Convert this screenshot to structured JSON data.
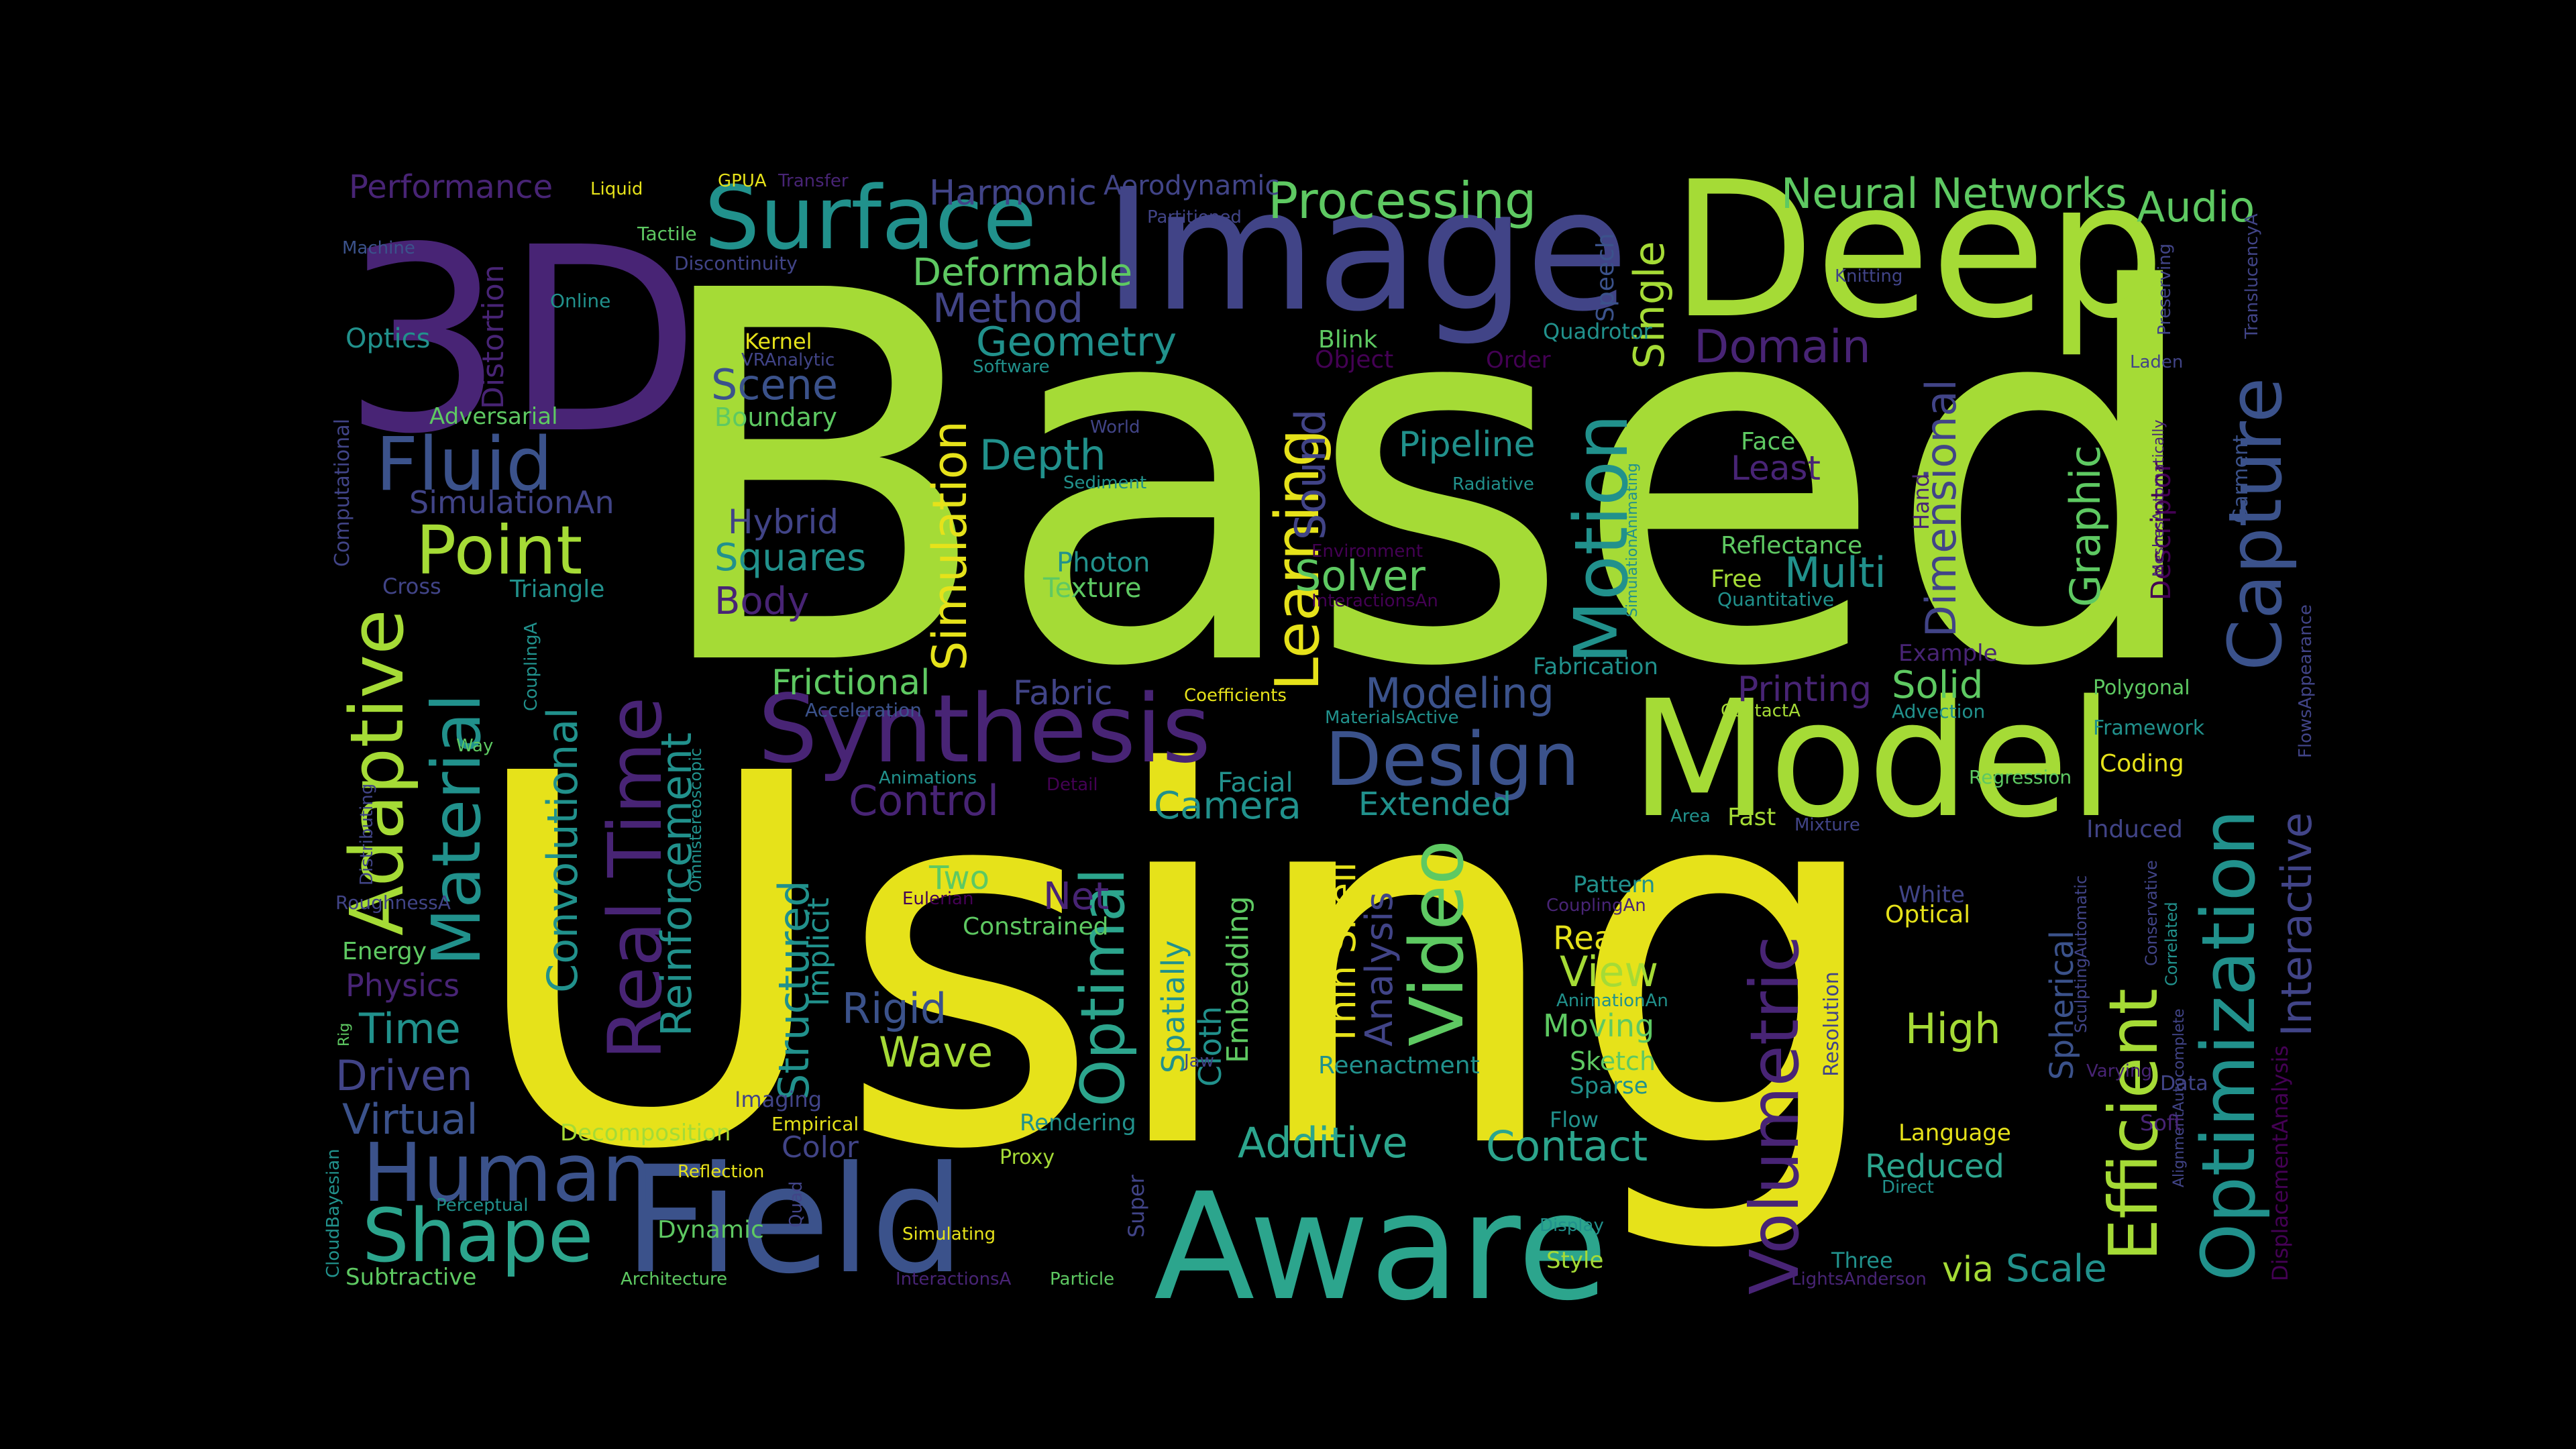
{
  "wordcloud": {
    "palette": {
      "yellow": "#e6e21a",
      "lime": "#a5db36",
      "green": "#5ec962",
      "teal": "#21918c",
      "cyan": "#2ca58d",
      "blue": "#3b528b",
      "indigo": "#414487",
      "purple": "#482475",
      "darkpurple": "#440154"
    },
    "words": [
      {
        "text": "Based",
        "color": "lime"
      },
      {
        "text": "Using",
        "color": "yellow"
      },
      {
        "text": "3D",
        "color": "purple"
      },
      {
        "text": "Image",
        "color": "indigo"
      },
      {
        "text": "Deep",
        "color": "lime"
      },
      {
        "text": "Model",
        "color": "lime"
      },
      {
        "text": "Aware",
        "color": "cyan"
      },
      {
        "text": "Field",
        "color": "blue"
      },
      {
        "text": "Surface",
        "color": "teal"
      },
      {
        "text": "Synthesis",
        "color": "purple"
      },
      {
        "text": "Capture",
        "color": "blue"
      },
      {
        "text": "Optimization",
        "color": "teal"
      },
      {
        "text": "Motion",
        "color": "teal"
      },
      {
        "text": "Design",
        "color": "blue"
      },
      {
        "text": "Adaptive",
        "color": "lime"
      },
      {
        "text": "Real Time",
        "color": "purple"
      },
      {
        "text": "Material",
        "color": "teal"
      },
      {
        "text": "Human",
        "color": "blue"
      },
      {
        "text": "Shape",
        "color": "cyan"
      },
      {
        "text": "Volumetric",
        "color": "purple"
      },
      {
        "text": "Efficient",
        "color": "lime"
      },
      {
        "text": "Video",
        "color": "green"
      },
      {
        "text": "Learning",
        "color": "yellow"
      },
      {
        "text": "Optimal",
        "color": "cyan"
      },
      {
        "text": "Point",
        "color": "lime"
      },
      {
        "text": "Fluid",
        "color": "blue"
      },
      {
        "text": "Processing",
        "color": "green"
      },
      {
        "text": "Neural Networks",
        "color": "green"
      },
      {
        "text": "Audio",
        "color": "green"
      },
      {
        "text": "Harmonic",
        "color": "indigo"
      },
      {
        "text": "Aerodynamic",
        "color": "indigo"
      },
      {
        "text": "Deformable",
        "color": "green"
      },
      {
        "text": "Method",
        "color": "indigo"
      },
      {
        "text": "Geometry",
        "color": "teal"
      },
      {
        "text": "Scene",
        "color": "blue"
      },
      {
        "text": "Boundary",
        "color": "green"
      },
      {
        "text": "Simulation",
        "color": "yellow"
      },
      {
        "text": "Depth",
        "color": "teal"
      },
      {
        "text": "Hybrid",
        "color": "indigo"
      },
      {
        "text": "Squares",
        "color": "teal"
      },
      {
        "text": "Body",
        "color": "purple"
      },
      {
        "text": "Photon",
        "color": "teal"
      },
      {
        "text": "Texture",
        "color": "green"
      },
      {
        "text": "Solver",
        "color": "green"
      },
      {
        "text": "Multi",
        "color": "teal"
      },
      {
        "text": "Pipeline",
        "color": "teal"
      },
      {
        "text": "Face",
        "color": "green"
      },
      {
        "text": "Least",
        "color": "purple"
      },
      {
        "text": "Reflectance",
        "color": "green"
      },
      {
        "text": "Free",
        "color": "lime"
      },
      {
        "text": "Quantitative",
        "color": "teal"
      },
      {
        "text": "Dimensional",
        "color": "indigo"
      },
      {
        "text": "Graphic",
        "color": "green"
      },
      {
        "text": "Descriptor",
        "color": "darkpurple"
      },
      {
        "text": "Domain",
        "color": "purple"
      },
      {
        "text": "Single",
        "color": "lime"
      },
      {
        "text": "Speech",
        "color": "blue"
      },
      {
        "text": "Quadrotor",
        "color": "teal"
      },
      {
        "text": "Blink",
        "color": "green"
      },
      {
        "text": "Object",
        "color": "darkpurple"
      },
      {
        "text": "Order",
        "color": "darkpurple"
      },
      {
        "text": "Knitting",
        "color": "indigo"
      },
      {
        "text": "Preserving",
        "color": "indigo"
      },
      {
        "text": "TranslucencyA",
        "color": "indigo"
      },
      {
        "text": "Laden",
        "color": "indigo"
      },
      {
        "text": "Garment",
        "color": "blue"
      },
      {
        "text": "Performance",
        "color": "purple"
      },
      {
        "text": "Liquid",
        "color": "yellow"
      },
      {
        "text": "GPUA",
        "color": "yellow"
      },
      {
        "text": "Transfer",
        "color": "purple"
      },
      {
        "text": "Tactile",
        "color": "green"
      },
      {
        "text": "Partitioned",
        "color": "indigo"
      },
      {
        "text": "Machine",
        "color": "blue"
      },
      {
        "text": "Discontinuity",
        "color": "indigo"
      },
      {
        "text": "Online",
        "color": "teal"
      },
      {
        "text": "Optics",
        "color": "teal"
      },
      {
        "text": "Distortion",
        "color": "purple"
      },
      {
        "text": "Kernel",
        "color": "yellow"
      },
      {
        "text": "VRAnalytic",
        "color": "indigo"
      },
      {
        "text": "Software",
        "color": "teal"
      },
      {
        "text": "Adversarial",
        "color": "green"
      },
      {
        "text": "Computational",
        "color": "indigo"
      },
      {
        "text": "SimulationAn",
        "color": "indigo"
      },
      {
        "text": "World",
        "color": "indigo"
      },
      {
        "text": "Sediment",
        "color": "teal"
      },
      {
        "text": "Radiative",
        "color": "teal"
      },
      {
        "text": "Sound",
        "color": "indigo"
      },
      {
        "text": "Cross",
        "color": "indigo"
      },
      {
        "text": "Triangle",
        "color": "teal"
      },
      {
        "text": "Environment",
        "color": "darkpurple"
      },
      {
        "text": "InteractionsAn",
        "color": "darkpurple"
      },
      {
        "text": "SimulationAnimating",
        "color": "teal"
      },
      {
        "text": "Hand",
        "color": "purple"
      },
      {
        "text": "MeshesAutomatically",
        "color": "purple"
      },
      {
        "text": "Convolutional",
        "color": "teal"
      },
      {
        "text": "Reinforcement",
        "color": "teal"
      },
      {
        "text": "CouplingA",
        "color": "teal"
      },
      {
        "text": "Frictional",
        "color": "green"
      },
      {
        "text": "Acceleration",
        "color": "blue"
      },
      {
        "text": "Fabric",
        "color": "indigo"
      },
      {
        "text": "Coefficients",
        "color": "yellow"
      },
      {
        "text": "MaterialsActive",
        "color": "teal"
      },
      {
        "text": "Modeling",
        "color": "blue"
      },
      {
        "text": "Fabrication",
        "color": "teal"
      },
      {
        "text": "Printing",
        "color": "purple"
      },
      {
        "text": "ContactA",
        "color": "lime"
      },
      {
        "text": "Example",
        "color": "purple"
      },
      {
        "text": "Solid",
        "color": "green"
      },
      {
        "text": "Advection",
        "color": "teal"
      },
      {
        "text": "Polygonal",
        "color": "green"
      },
      {
        "text": "Framework",
        "color": "teal"
      },
      {
        "text": "FlowsAppearance",
        "color": "indigo"
      },
      {
        "text": "Omnistereoscopic",
        "color": "teal"
      },
      {
        "text": "Way",
        "color": "green"
      },
      {
        "text": "Animations",
        "color": "teal"
      },
      {
        "text": "Detail",
        "color": "darkpurple"
      },
      {
        "text": "Facial",
        "color": "teal"
      },
      {
        "text": "Control",
        "color": "purple"
      },
      {
        "text": "Camera",
        "color": "teal"
      },
      {
        "text": "Extended",
        "color": "teal"
      },
      {
        "text": "Area",
        "color": "teal"
      },
      {
        "text": "Fast",
        "color": "lime"
      },
      {
        "text": "Mixture",
        "color": "indigo"
      },
      {
        "text": "Regression",
        "color": "green"
      },
      {
        "text": "Coding",
        "color": "yellow"
      },
      {
        "text": "Induced",
        "color": "indigo"
      },
      {
        "text": "Conservative",
        "color": "indigo"
      },
      {
        "text": "Interactive",
        "color": "indigo"
      },
      {
        "text": "Distributing",
        "color": "indigo"
      },
      {
        "text": "RoughnessA",
        "color": "indigo"
      },
      {
        "text": "Eulerian",
        "color": "darkpurple"
      },
      {
        "text": "Two",
        "color": "green"
      },
      {
        "text": "Net",
        "color": "purple"
      },
      {
        "text": "Constrained",
        "color": "green"
      },
      {
        "text": "Implicit",
        "color": "teal"
      },
      {
        "text": "Structured",
        "color": "teal"
      },
      {
        "text": "Spatially",
        "color": "teal"
      },
      {
        "text": "Cloth",
        "color": "teal"
      },
      {
        "text": "Embedding",
        "color": "green"
      },
      {
        "text": "Thin Shell",
        "color": "yellow"
      },
      {
        "text": "Analysis",
        "color": "indigo"
      },
      {
        "text": "Real",
        "color": "yellow"
      },
      {
        "text": "View",
        "color": "lime"
      },
      {
        "text": "Pattern",
        "color": "teal"
      },
      {
        "text": "CouplingAn",
        "color": "purple"
      },
      {
        "text": "AnimationAn",
        "color": "teal"
      },
      {
        "text": "White",
        "color": "indigo"
      },
      {
        "text": "Optical",
        "color": "yellow"
      },
      {
        "text": "SculptingAutomatic",
        "color": "indigo"
      },
      {
        "text": "Correlated",
        "color": "teal"
      },
      {
        "text": "AlignmentAutocomplete",
        "color": "indigo"
      },
      {
        "text": "DisplacementAnalysis",
        "color": "darkpurple"
      },
      {
        "text": "Energy",
        "color": "green"
      },
      {
        "text": "Physics",
        "color": "purple"
      },
      {
        "text": "Time",
        "color": "teal"
      },
      {
        "text": "Driven",
        "color": "indigo"
      },
      {
        "text": "Virtual",
        "color": "blue"
      },
      {
        "text": "Rig",
        "color": "green"
      },
      {
        "text": "Rigid",
        "color": "blue"
      },
      {
        "text": "Wave",
        "color": "lime"
      },
      {
        "text": "Moving",
        "color": "green"
      },
      {
        "text": "Sketch",
        "color": "green"
      },
      {
        "text": "Sparse",
        "color": "teal"
      },
      {
        "text": "Reenactment",
        "color": "teal"
      },
      {
        "text": "Jaw",
        "color": "indigo"
      },
      {
        "text": "High",
        "color": "lime"
      },
      {
        "text": "Spherical",
        "color": "blue"
      },
      {
        "text": "Resolution",
        "color": "indigo"
      },
      {
        "text": "Varying",
        "color": "purple"
      },
      {
        "text": "Data",
        "color": "indigo"
      },
      {
        "text": "Soft",
        "color": "purple"
      },
      {
        "text": "Imaging",
        "color": "indigo"
      },
      {
        "text": "Decomposition",
        "color": "lime"
      },
      {
        "text": "Empirical",
        "color": "yellow"
      },
      {
        "text": "Color",
        "color": "indigo"
      },
      {
        "text": "Rendering",
        "color": "teal"
      },
      {
        "text": "Proxy",
        "color": "lime"
      },
      {
        "text": "Additive",
        "color": "cyan"
      },
      {
        "text": "Contact",
        "color": "cyan"
      },
      {
        "text": "Flow",
        "color": "teal"
      },
      {
        "text": "Language",
        "color": "yellow"
      },
      {
        "text": "Reduced",
        "color": "cyan"
      },
      {
        "text": "Direct",
        "color": "teal"
      },
      {
        "text": "CloudBayesian",
        "color": "teal"
      },
      {
        "text": "Perceptual",
        "color": "teal"
      },
      {
        "text": "Reflection",
        "color": "yellow"
      },
      {
        "text": "Quad",
        "color": "indigo"
      },
      {
        "text": "Super",
        "color": "indigo"
      },
      {
        "text": "Dynamic",
        "color": "green"
      },
      {
        "text": "Simulating",
        "color": "yellow"
      },
      {
        "text": "Display",
        "color": "teal"
      },
      {
        "text": "Style",
        "color": "lime"
      },
      {
        "text": "Three",
        "color": "teal"
      },
      {
        "text": "LightsAnderson",
        "color": "purple"
      },
      {
        "text": "via",
        "color": "lime"
      },
      {
        "text": "Scale",
        "color": "teal"
      },
      {
        "text": "Subtractive",
        "color": "green"
      },
      {
        "text": "Architecture",
        "color": "green"
      },
      {
        "text": "InteractionsA",
        "color": "purple"
      },
      {
        "text": "Particle",
        "color": "green"
      }
    ]
  }
}
